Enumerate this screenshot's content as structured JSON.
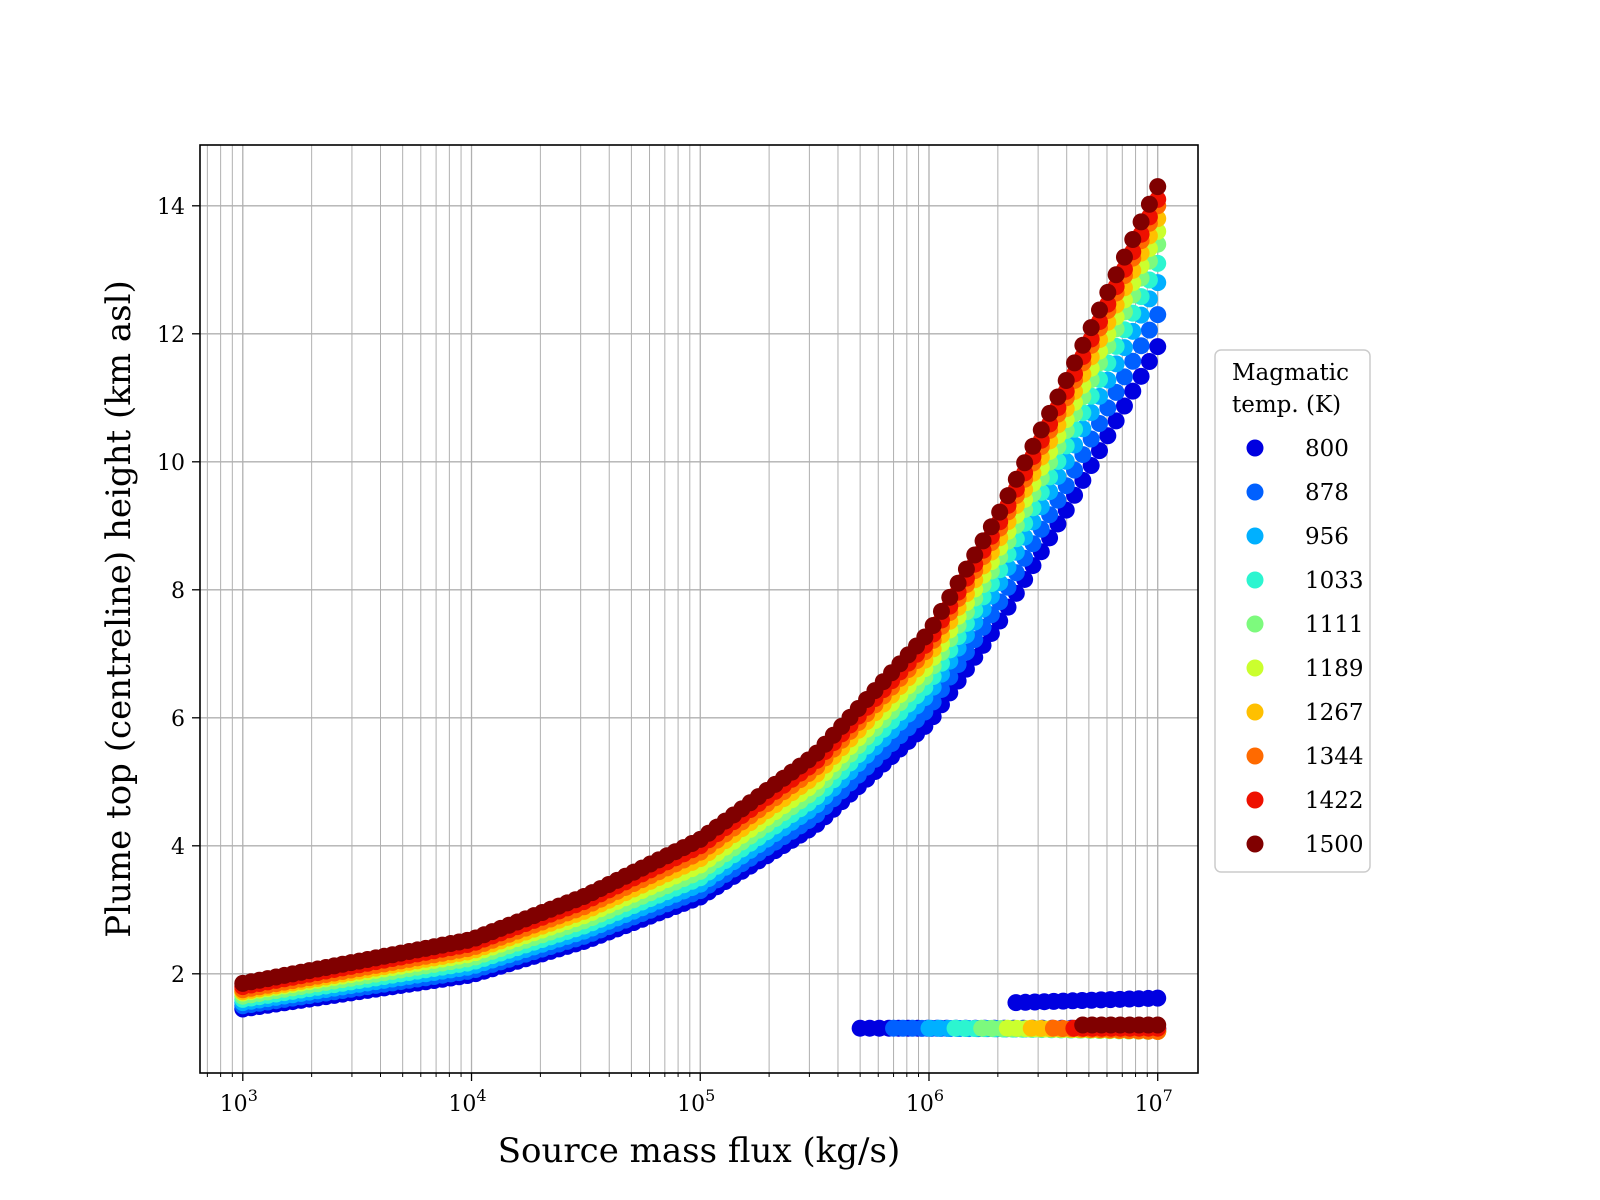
{
  "chart_data": {
    "type": "scatter",
    "title": "",
    "xlabel": "Source mass flux (kg/s)",
    "ylabel": "Plume top (centreline) height (km asl)",
    "xscale": "log",
    "xlim": [
      650,
      15000000
    ],
    "ylim": [
      0.45,
      14.95
    ],
    "grid": true,
    "x_tick_labels": [
      {
        "base": "10",
        "exp": "3"
      },
      {
        "base": "10",
        "exp": "4"
      },
      {
        "base": "10",
        "exp": "5"
      },
      {
        "base": "10",
        "exp": "6"
      },
      {
        "base": "10",
        "exp": "7"
      }
    ],
    "y_ticks": [
      2,
      4,
      6,
      8,
      10,
      12,
      14
    ],
    "y_tick_labels": [
      "2",
      "4",
      "6",
      "8",
      "10",
      "12",
      "14"
    ],
    "legend": {
      "title_lines": [
        "Magmatic",
        "temp. (K)"
      ],
      "location": "center-right, outside plot"
    },
    "series": [
      {
        "name": "800",
        "color": "#0000e0",
        "start_height": 1.45,
        "height_at_1e5": 3.2,
        "end_height": 11.8,
        "low_branch": {
          "x": [
            500000,
            10000000
          ],
          "y": [
            1.15,
            1.15
          ]
        },
        "upper_low_branch": {
          "x": [
            2400000,
            10000000
          ],
          "y": [
            1.55,
            1.62
          ]
        }
      },
      {
        "name": "878",
        "color": "#0060ff",
        "start_height": 1.5,
        "height_at_1e5": 3.3,
        "end_height": 12.3,
        "low_branch": {
          "x": [
            700000,
            10000000
          ],
          "y": [
            1.15,
            1.13
          ]
        }
      },
      {
        "name": "956",
        "color": "#00b0ff",
        "start_height": 1.55,
        "height_at_1e5": 3.4,
        "end_height": 12.8,
        "low_branch": {
          "x": [
            1000000,
            10000000
          ],
          "y": [
            1.15,
            1.12
          ]
        }
      },
      {
        "name": "1033",
        "color": "#2cf5d0",
        "start_height": 1.6,
        "height_at_1e5": 3.5,
        "end_height": 13.1,
        "low_branch": {
          "x": [
            1300000,
            10000000
          ],
          "y": [
            1.15,
            1.1
          ]
        }
      },
      {
        "name": "1111",
        "color": "#7dfa7d",
        "start_height": 1.65,
        "height_at_1e5": 3.6,
        "end_height": 13.4,
        "low_branch": {
          "x": [
            1700000,
            10000000
          ],
          "y": [
            1.15,
            1.1
          ]
        }
      },
      {
        "name": "1189",
        "color": "#cbff2e",
        "start_height": 1.7,
        "height_at_1e5": 3.7,
        "end_height": 13.6,
        "low_branch": {
          "x": [
            2200000,
            10000000
          ],
          "y": [
            1.15,
            1.1
          ]
        }
      },
      {
        "name": "1267",
        "color": "#ffc000",
        "start_height": 1.72,
        "height_at_1e5": 3.8,
        "end_height": 13.8,
        "low_branch": {
          "x": [
            2800000,
            10000000
          ],
          "y": [
            1.15,
            1.1
          ]
        }
      },
      {
        "name": "1344",
        "color": "#ff6a00",
        "start_height": 1.75,
        "height_at_1e5": 3.9,
        "end_height": 14.0,
        "low_branch": {
          "x": [
            3500000,
            10000000
          ],
          "y": [
            1.15,
            1.1
          ]
        }
      },
      {
        "name": "1422",
        "color": "#ee1000",
        "start_height": 1.8,
        "height_at_1e5": 4.0,
        "end_height": 14.1,
        "low_branch": {
          "x": [
            4300000,
            10000000
          ],
          "y": [
            1.15,
            1.15
          ]
        }
      },
      {
        "name": "1500",
        "color": "#800000",
        "start_height": 1.85,
        "height_at_1e5": 4.1,
        "end_height": 14.3,
        "low_branch": {
          "x": [
            4700000,
            10000000
          ],
          "y": [
            1.2,
            1.2
          ]
        }
      }
    ]
  }
}
